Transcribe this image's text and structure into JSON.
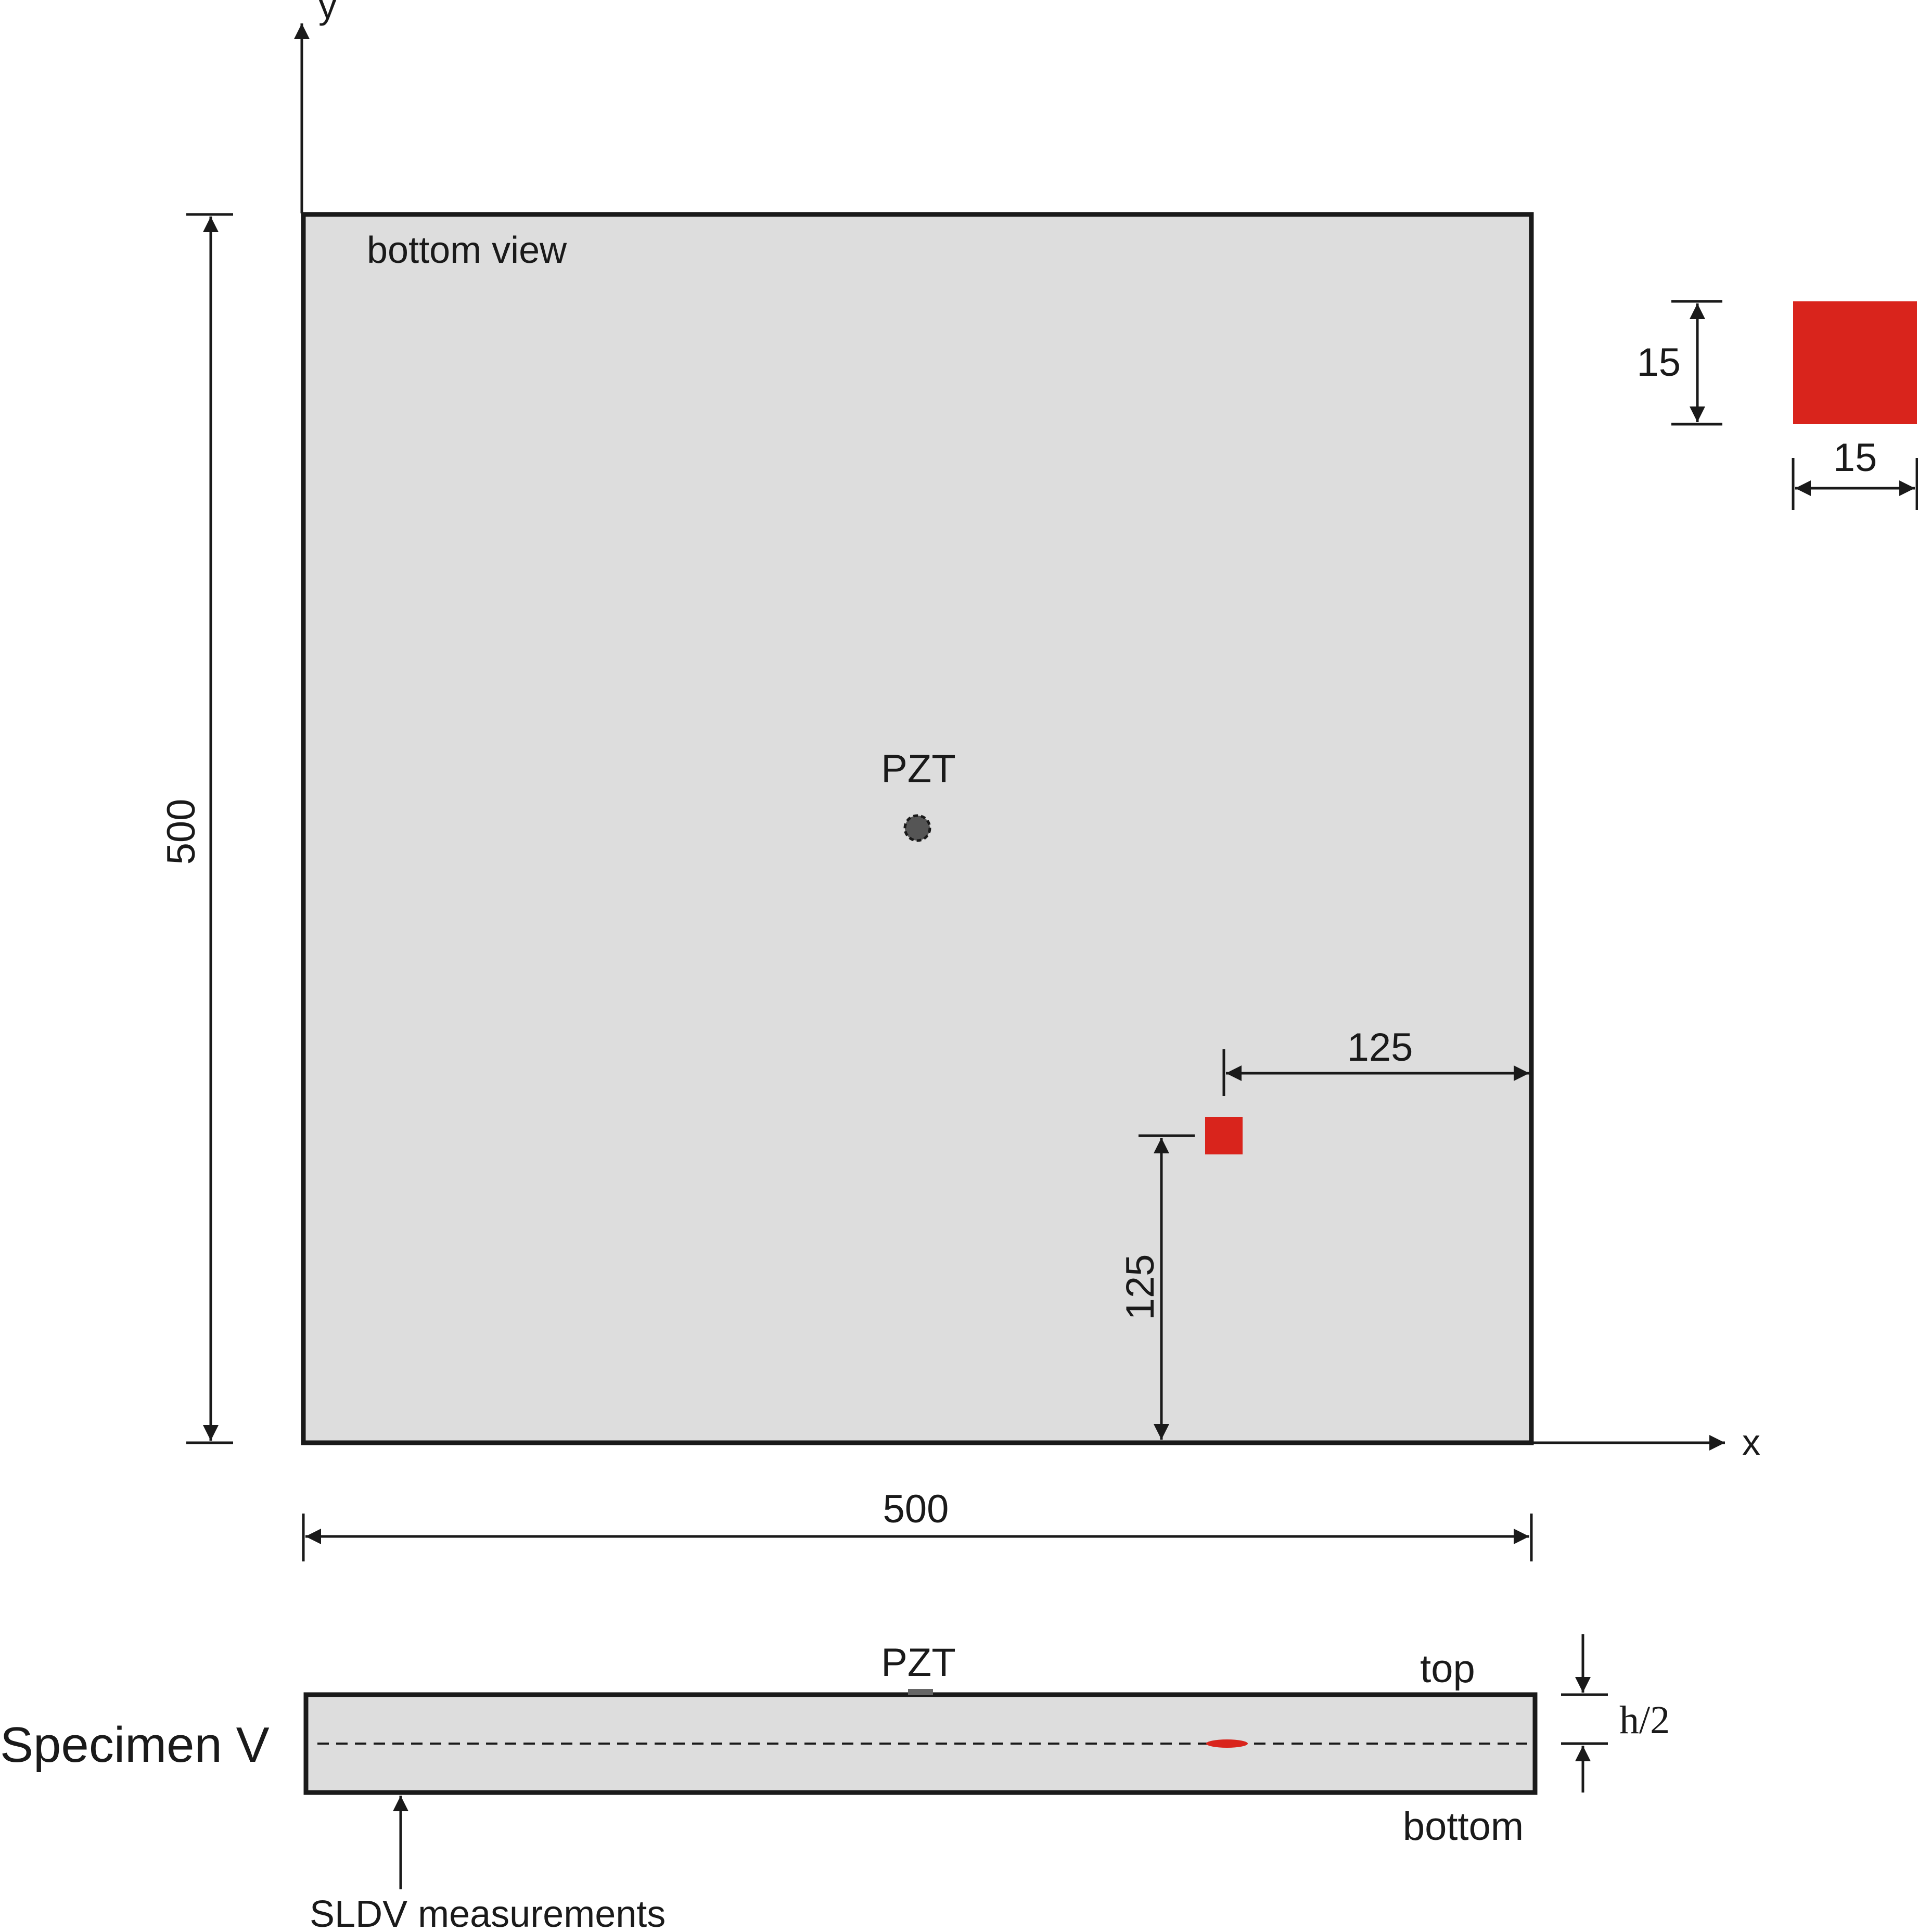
{
  "diagram": {
    "top_view_label": "bottom view",
    "axis_x_label": "x",
    "axis_y_label": "y",
    "plate_width": "500",
    "plate_height": "500",
    "pzt_label": "PZT",
    "delam_offset_x": "125",
    "delam_offset_y": "125",
    "delam_size_h": "15",
    "delam_size_w": "15",
    "specimen_label": "Specimen V",
    "side_pzt_label": "PZT",
    "top_label": "top",
    "bottom_label": "bottom",
    "half_thickness_label": "h/2",
    "sldv_label": "SLDV measurements"
  },
  "colors": {
    "plate_fill": "#dddddd",
    "outline": "#1a1a1a",
    "delamination": "#d9241c",
    "pzt": "#555555"
  }
}
